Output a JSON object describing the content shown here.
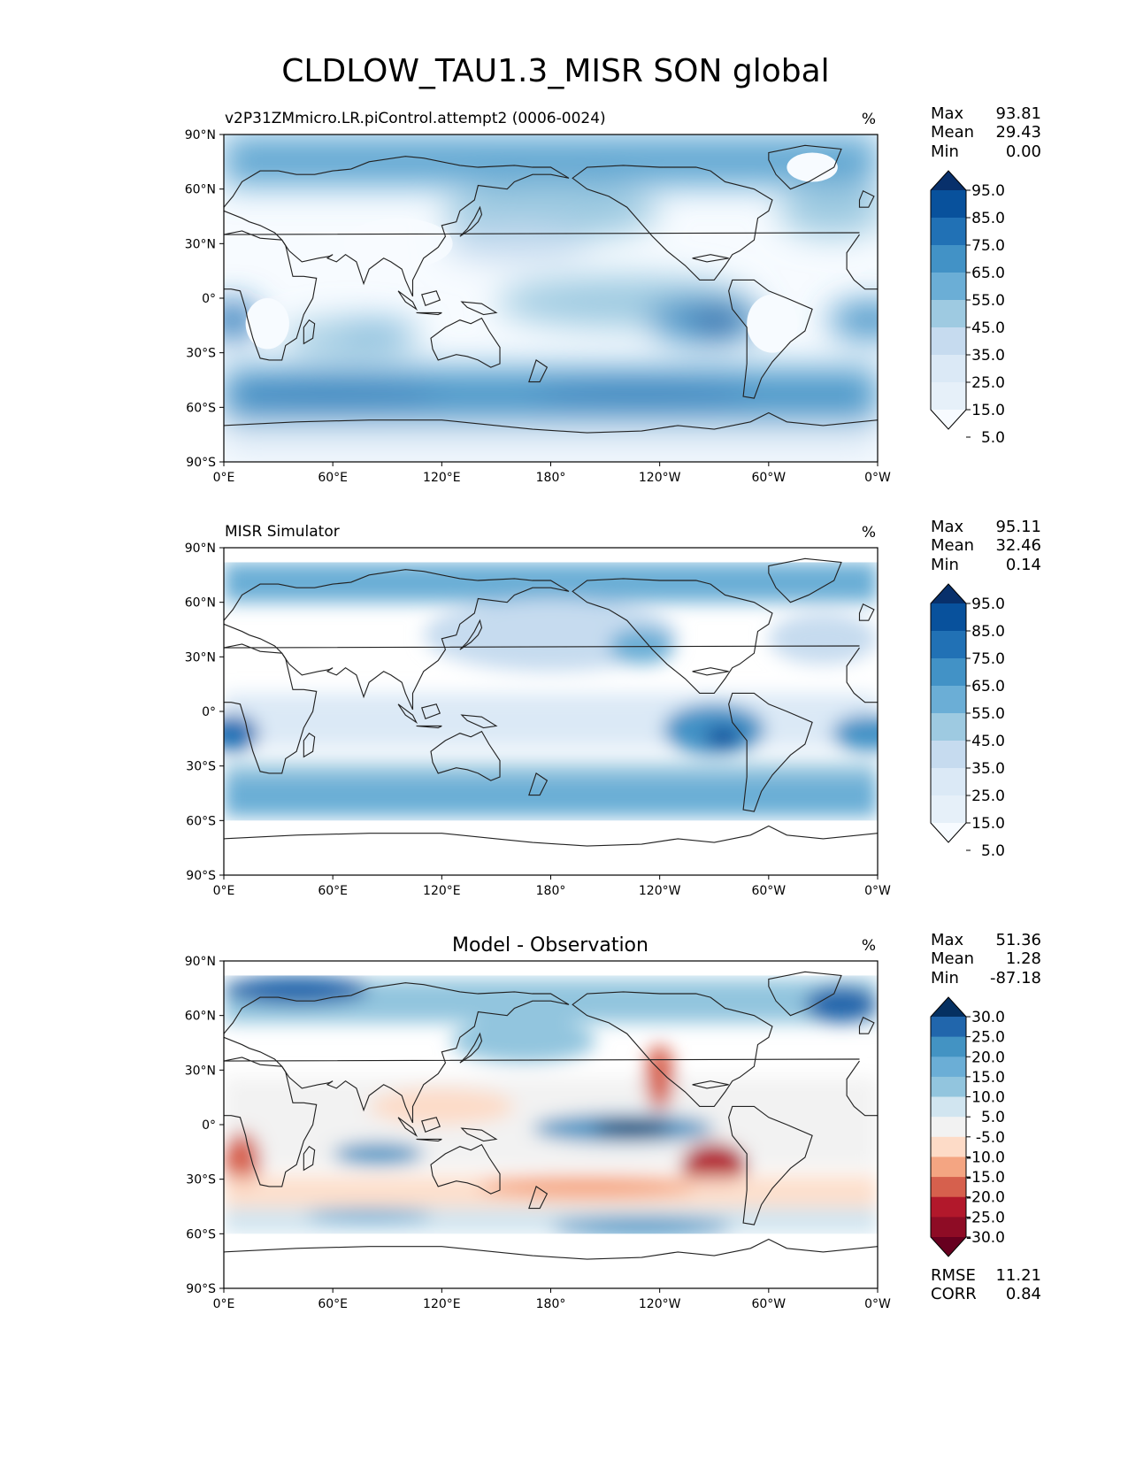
{
  "figure": {
    "title": "CLDLOW_TAU1.3_MISR SON global"
  },
  "x_ticks": [
    "0°E",
    "60°E",
    "120°E",
    "180°",
    "120°W",
    "60°W",
    "0°W"
  ],
  "y_ticks": [
    "90°N",
    "60°N",
    "30°N",
    "0°",
    "30°S",
    "60°S",
    "90°S"
  ],
  "panels": [
    {
      "id": "model",
      "title": "v2P31ZMmicro.LR.piControl.attempt2 (0006-0024)",
      "title_align": "left",
      "units": "%",
      "stats": [
        {
          "label": "Max",
          "value": "93.81"
        },
        {
          "label": "Mean",
          "value": "29.43"
        },
        {
          "label": "Min",
          "value": "0.00"
        }
      ],
      "colorbar": {
        "labels": [
          "95.0",
          "85.0",
          "75.0",
          "65.0",
          "55.0",
          "45.0",
          "35.0",
          "25.0",
          "15.0",
          "5.0"
        ],
        "colors": [
          "#08306b",
          "#08519c",
          "#2171b5",
          "#4292c6",
          "#6baed6",
          "#9ecae1",
          "#c6dbef",
          "#dbe9f6",
          "#e6f0f9",
          "#f7fbff"
        ]
      }
    },
    {
      "id": "obs",
      "title": "MISR Simulator",
      "title_align": "left",
      "units": "%",
      "stats": [
        {
          "label": "Max",
          "value": "95.11"
        },
        {
          "label": "Mean",
          "value": "32.46"
        },
        {
          "label": "Min",
          "value": "0.14"
        }
      ],
      "colorbar": {
        "labels": [
          "95.0",
          "85.0",
          "75.0",
          "65.0",
          "55.0",
          "45.0",
          "35.0",
          "25.0",
          "15.0",
          "5.0"
        ],
        "colors": [
          "#08306b",
          "#08519c",
          "#2171b5",
          "#4292c6",
          "#6baed6",
          "#9ecae1",
          "#c6dbef",
          "#dbe9f6",
          "#e6f0f9",
          "#f7fbff"
        ]
      }
    },
    {
      "id": "diff",
      "title": "Model - Observation",
      "title_align": "center",
      "units": "%",
      "stats": [
        {
          "label": "Max",
          "value": "51.36"
        },
        {
          "label": "Mean",
          "value": "1.28"
        },
        {
          "label": "Min",
          "value": "-87.18"
        }
      ],
      "colorbar": {
        "labels": [
          "30.0",
          "25.0",
          "20.0",
          "15.0",
          "10.0",
          "5.0",
          "-5.0",
          "-10.0",
          "-15.0",
          "-20.0",
          "-25.0",
          "-30.0"
        ],
        "colors": [
          "#053061",
          "#2166ac",
          "#4393c3",
          "#6baed6",
          "#92c5de",
          "#d1e5f0",
          "#f2f2f2",
          "#fddbc7",
          "#f4a582",
          "#d6604d",
          "#b2182b",
          "#8e0c25",
          "#67001f"
        ]
      },
      "metrics": [
        {
          "label": "RMSE",
          "value": "11.21"
        },
        {
          "label": "CORR",
          "value": "0.84"
        }
      ]
    }
  ]
}
